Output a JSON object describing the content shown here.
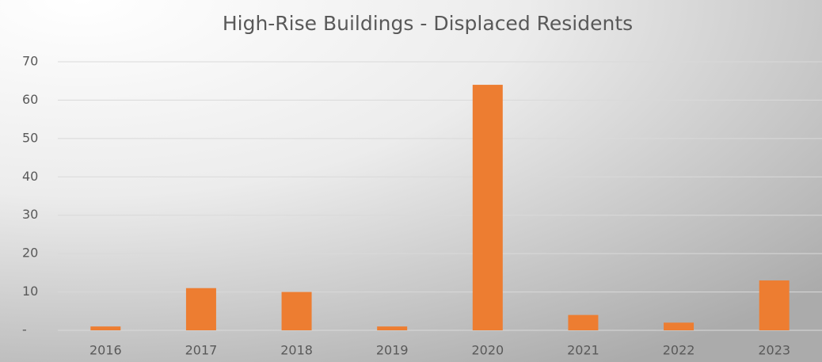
{
  "chart_data": {
    "type": "bar",
    "title": "High-Rise Buildings - Displaced Residents",
    "categories": [
      "2016",
      "2017",
      "2018",
      "2019",
      "2020",
      "2021",
      "2022",
      "2023"
    ],
    "values": [
      1,
      11,
      10,
      1,
      64,
      4,
      2,
      13
    ],
    "color": "#ed7d31",
    "ylim": [
      0,
      70
    ],
    "yticks": [
      {
        "value": 0,
        "label": "-"
      },
      10,
      20,
      30,
      40,
      50,
      60,
      70
    ],
    "grid": true
  }
}
